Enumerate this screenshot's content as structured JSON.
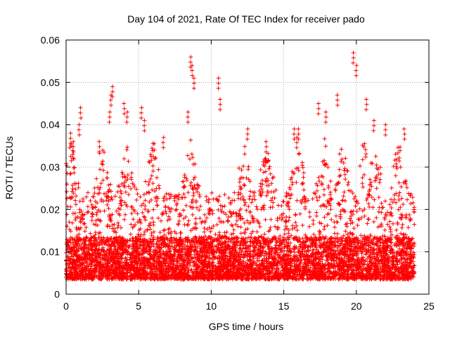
{
  "chart_data": {
    "type": "scatter",
    "title": "Day 104 of 2021, Rate Of TEC Index for receiver pado",
    "xlabel": "GPS time / hours",
    "ylabel": "ROTI / TECUs",
    "xlim": [
      0,
      25
    ],
    "ylim": [
      0,
      0.06
    ],
    "xticks": [
      0,
      5,
      10,
      15,
      20,
      25
    ],
    "xtick_labels": [
      "0",
      "5",
      "10",
      "15",
      "20",
      "25"
    ],
    "yticks": [
      0,
      0.01,
      0.02,
      0.03,
      0.04,
      0.05,
      0.06
    ],
    "ytick_labels": [
      "0",
      "0.01",
      "0.02",
      "0.03",
      "0.04",
      "0.05",
      "0.06"
    ],
    "grid": true,
    "marker": "+",
    "series": [
      {
        "name": "ROTI",
        "color": "#ff0000",
        "x": [
          0.3,
          0.5,
          0.9,
          1.0,
          2.3,
          3.0,
          3.1,
          3.2,
          4.0,
          4.2,
          5.2,
          5.4,
          6.7,
          8.4,
          8.6,
          8.7,
          8.8,
          10.5,
          10.6,
          12.5,
          13.8,
          15.7,
          15.9,
          16.0,
          17.4,
          17.9,
          18.7,
          19.8,
          20.0,
          20.7,
          21.2,
          22.0,
          23.3
        ],
        "y": [
          0.038,
          0.036,
          0.04,
          0.044,
          0.036,
          0.043,
          0.047,
          0.049,
          0.045,
          0.043,
          0.044,
          0.041,
          0.037,
          0.043,
          0.056,
          0.054,
          0.051,
          0.051,
          0.046,
          0.039,
          0.036,
          0.039,
          0.037,
          0.039,
          0.045,
          0.043,
          0.047,
          0.057,
          0.054,
          0.046,
          0.041,
          0.04,
          0.039
        ]
      }
    ],
    "dense_band": {
      "description_hint": "dense cloud",
      "x_range": [
        0,
        24
      ],
      "y_range": [
        0.003,
        0.03
      ]
    }
  }
}
